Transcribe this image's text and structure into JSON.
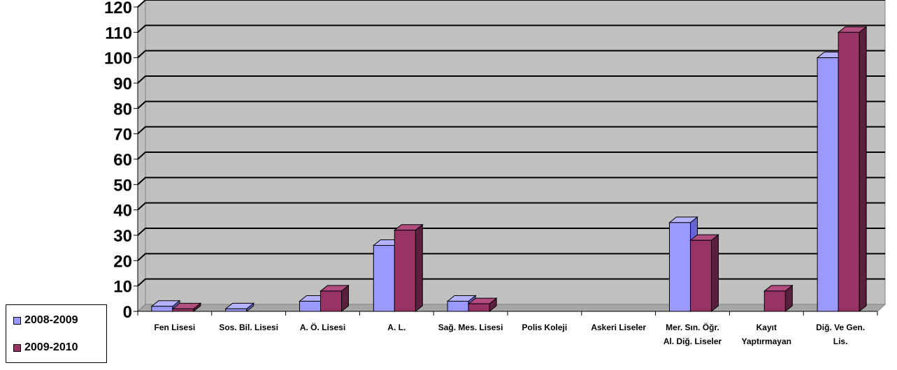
{
  "chart_data": {
    "type": "bar",
    "ylim": [
      0,
      120
    ],
    "yticks": [
      "0",
      "10",
      "20",
      "30",
      "40",
      "50",
      "60",
      "70",
      "80",
      "90",
      "100",
      "110",
      "120"
    ],
    "grid": true,
    "legend_position": "bottom-left",
    "categories": [
      [
        "Fen Lisesi"
      ],
      [
        "Sos. Bil. Lisesi"
      ],
      [
        "A. Ö. Lisesi"
      ],
      [
        "A. L."
      ],
      [
        "Sağ. Mes. Lisesi"
      ],
      [
        "Polis Koleji"
      ],
      [
        "Askeri Liseler"
      ],
      [
        "Mer. Sın. Öğr.",
        "Al. Diğ. Liseler"
      ],
      [
        "Kayıt",
        "Yaptırmayan"
      ],
      [
        "Diğ. Ve Gen.",
        "Lis."
      ]
    ],
    "series": [
      {
        "name": "2008-2009",
        "color": "#9999ff",
        "side": "#6666cc",
        "top": "#b3b3ff",
        "values": [
          2,
          1,
          4,
          26,
          4,
          0,
          0,
          35,
          0,
          100
        ]
      },
      {
        "name": "2009-2010",
        "color": "#993366",
        "side": "#5c1f3d",
        "top": "#b34d80",
        "values": [
          1,
          0,
          8,
          32,
          3,
          0,
          0,
          28,
          8,
          110
        ]
      }
    ]
  }
}
